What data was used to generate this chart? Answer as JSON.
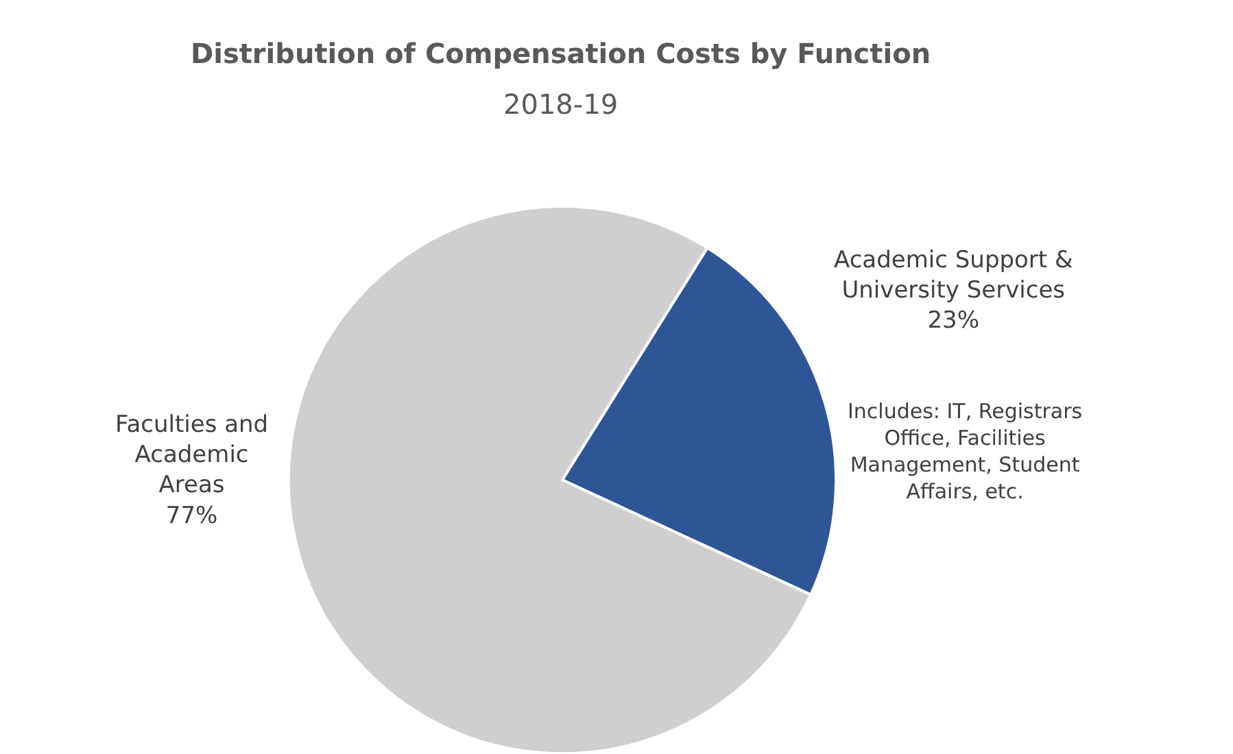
{
  "chart_data": {
    "type": "pie",
    "title": "Distribution of Compensation Costs by Function",
    "subtitle": "2018-19",
    "categories": [
      "Academic Support & University Services",
      "Faculties and Academic Areas"
    ],
    "values": [
      23,
      77
    ],
    "colors": [
      "#2e5596",
      "#d0cfd0"
    ],
    "value_labels": [
      "23%",
      "77%"
    ],
    "annotations": [
      "Includes: IT, Registrars Office, Facilities Management, Student Affairs, etc."
    ]
  }
}
